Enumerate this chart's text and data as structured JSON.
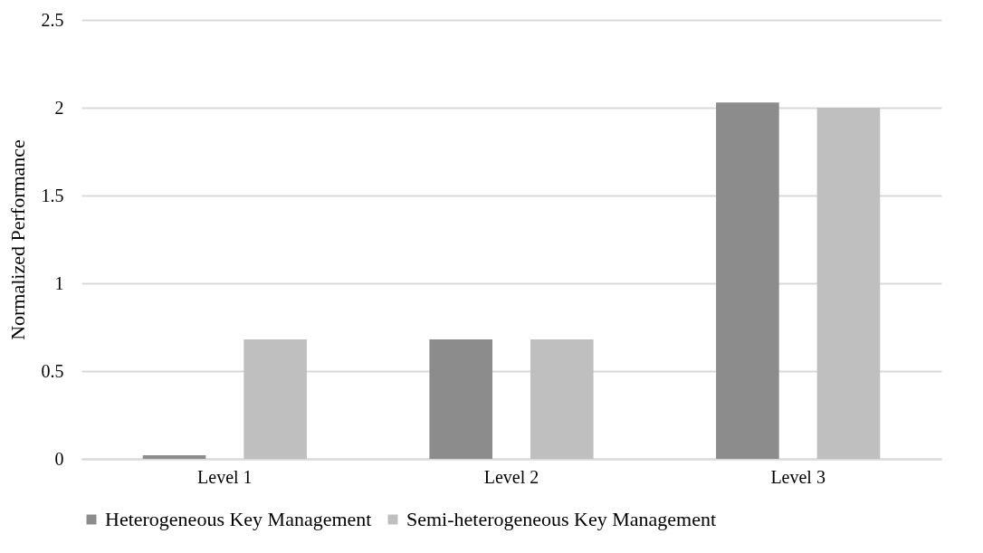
{
  "chart_data": {
    "type": "bar",
    "ylabel": "Normalized Performance",
    "categories": [
      "Level 1",
      "Level 2",
      "Level 3"
    ],
    "series": [
      {
        "name": "Heterogeneous Key Management",
        "color": "#8c8c8c",
        "values": [
          0.02,
          0.68,
          2.03
        ]
      },
      {
        "name": "Semi-heterogeneous Key Management",
        "color": "#bfbfbf",
        "values": [
          0.68,
          0.68,
          2.0
        ]
      }
    ],
    "ylim": [
      0,
      2.5
    ],
    "yticks": [
      0,
      0.5,
      1,
      1.5,
      2,
      2.5
    ],
    "grid": "y",
    "legend": "bottom"
  }
}
